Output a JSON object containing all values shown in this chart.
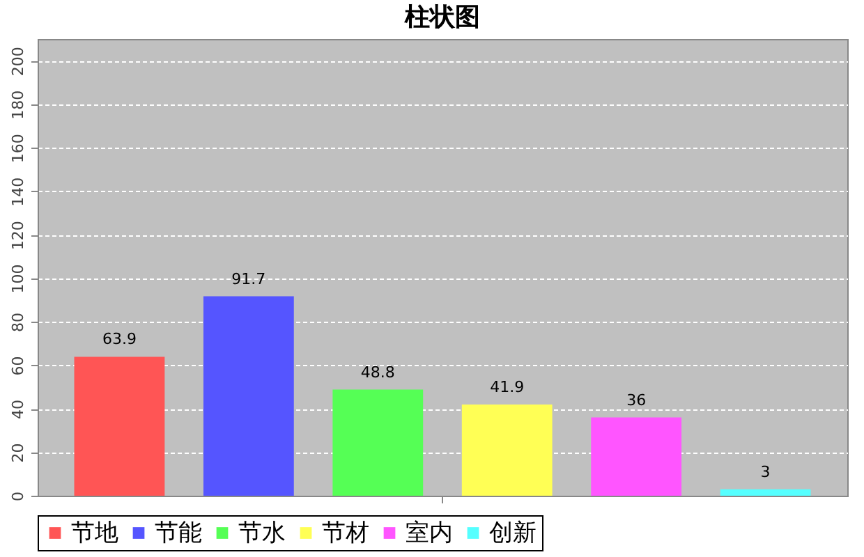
{
  "chart_data": {
    "type": "bar",
    "title": "柱状图",
    "categories": [
      null
    ],
    "series": [
      {
        "name": "节地",
        "color": "#ff5555",
        "values": [
          63.9
        ]
      },
      {
        "name": "节能",
        "color": "#5555ff",
        "values": [
          91.7
        ]
      },
      {
        "name": "节水",
        "color": "#55ff55",
        "values": [
          48.8
        ]
      },
      {
        "name": "节材",
        "color": "#ffff55",
        "values": [
          41.9
        ]
      },
      {
        "name": "室内",
        "color": "#ff55ff",
        "values": [
          36
        ]
      },
      {
        "name": "创新",
        "color": "#55ffff",
        "values": [
          3
        ]
      }
    ],
    "ylim": [
      0,
      210
    ],
    "yticks": [
      0,
      20,
      40,
      60,
      80,
      100,
      120,
      140,
      160,
      180,
      200
    ],
    "grid": "y",
    "legend": "bottom",
    "data_labels": true,
    "tick_labels": "y"
  }
}
